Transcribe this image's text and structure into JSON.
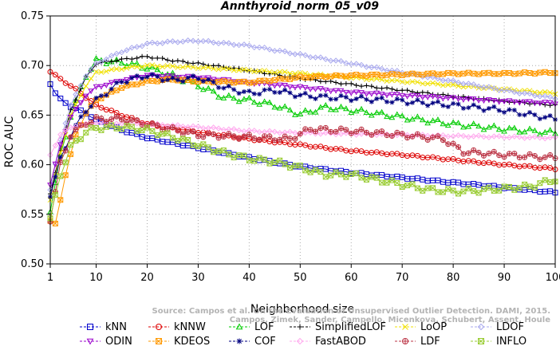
{
  "chart_data": {
    "type": "line",
    "title": "Annthyroid_norm_05_v09",
    "xlabel": "Neighborhood size",
    "ylabel": "ROC AUC",
    "xlim": [
      1,
      100
    ],
    "ylim": [
      0.5,
      0.75
    ],
    "xticks": [
      1,
      10,
      20,
      30,
      40,
      50,
      60,
      70,
      80,
      90,
      100
    ],
    "yticks": [
      "0.50",
      "0.55",
      "0.60",
      "0.65",
      "0.70",
      "0.75"
    ],
    "credit": [
      "Source: Campos et al. On the Evaluation of Unsupervised Outlier Detection. DAMI, 2015.",
      "Campos, Zimek, Sander, Campello, Micenkova, Schubert, Assent, Houle"
    ],
    "series": [
      {
        "name": "kNN",
        "color": "#0000cc",
        "marker": "square",
        "points": [
          [
            1,
            0.682
          ],
          [
            2,
            0.672
          ],
          [
            3,
            0.666
          ],
          [
            5,
            0.659
          ],
          [
            8,
            0.652
          ],
          [
            10,
            0.645
          ],
          [
            15,
            0.635
          ],
          [
            20,
            0.627
          ],
          [
            30,
            0.617
          ],
          [
            40,
            0.607
          ],
          [
            50,
            0.598
          ],
          [
            60,
            0.592
          ],
          [
            70,
            0.587
          ],
          [
            80,
            0.582
          ],
          [
            90,
            0.577
          ],
          [
            100,
            0.572
          ]
        ]
      },
      {
        "name": "kNNW",
        "color": "#dd0000",
        "marker": "circle",
        "points": [
          [
            1,
            0.694
          ],
          [
            2,
            0.69
          ],
          [
            4,
            0.683
          ],
          [
            6,
            0.676
          ],
          [
            8,
            0.668
          ],
          [
            10,
            0.66
          ],
          [
            15,
            0.65
          ],
          [
            20,
            0.641
          ],
          [
            30,
            0.633
          ],
          [
            40,
            0.626
          ],
          [
            50,
            0.62
          ],
          [
            60,
            0.614
          ],
          [
            70,
            0.61
          ],
          [
            80,
            0.605
          ],
          [
            90,
            0.6
          ],
          [
            100,
            0.596
          ]
        ]
      },
      {
        "name": "LOF",
        "color": "#00cc00",
        "marker": "triangle-up",
        "points": [
          [
            1,
            0.555
          ],
          [
            3,
            0.608
          ],
          [
            5,
            0.65
          ],
          [
            8,
            0.69
          ],
          [
            10,
            0.705
          ],
          [
            15,
            0.703
          ],
          [
            20,
            0.698
          ],
          [
            25,
            0.69
          ],
          [
            30,
            0.68
          ],
          [
            35,
            0.668
          ],
          [
            40,
            0.665
          ],
          [
            45,
            0.66
          ],
          [
            50,
            0.651
          ],
          [
            55,
            0.658
          ],
          [
            60,
            0.655
          ],
          [
            70,
            0.648
          ],
          [
            80,
            0.641
          ],
          [
            90,
            0.636
          ],
          [
            100,
            0.632
          ]
        ]
      },
      {
        "name": "SimplifiedLOF",
        "color": "#000000",
        "marker": "plus",
        "points": [
          [
            1,
            0.57
          ],
          [
            3,
            0.615
          ],
          [
            5,
            0.655
          ],
          [
            8,
            0.688
          ],
          [
            10,
            0.702
          ],
          [
            15,
            0.706
          ],
          [
            20,
            0.709
          ],
          [
            25,
            0.705
          ],
          [
            30,
            0.702
          ],
          [
            40,
            0.695
          ],
          [
            50,
            0.687
          ],
          [
            60,
            0.681
          ],
          [
            70,
            0.675
          ],
          [
            80,
            0.669
          ],
          [
            90,
            0.664
          ],
          [
            100,
            0.66
          ]
        ]
      },
      {
        "name": "LoOP",
        "color": "#f0e000",
        "marker": "x",
        "points": [
          [
            1,
            0.565
          ],
          [
            3,
            0.612
          ],
          [
            5,
            0.65
          ],
          [
            8,
            0.68
          ],
          [
            10,
            0.693
          ],
          [
            15,
            0.697
          ],
          [
            20,
            0.7
          ],
          [
            30,
            0.698
          ],
          [
            40,
            0.695
          ],
          [
            50,
            0.692
          ],
          [
            60,
            0.688
          ],
          [
            70,
            0.684
          ],
          [
            80,
            0.68
          ],
          [
            90,
            0.676
          ],
          [
            100,
            0.672
          ]
        ]
      },
      {
        "name": "LDOF",
        "color": "#aaaaee",
        "marker": "diamond",
        "points": [
          [
            1,
            0.575
          ],
          [
            3,
            0.625
          ],
          [
            5,
            0.66
          ],
          [
            8,
            0.69
          ],
          [
            10,
            0.702
          ],
          [
            15,
            0.714
          ],
          [
            20,
            0.722
          ],
          [
            25,
            0.724
          ],
          [
            30,
            0.725
          ],
          [
            40,
            0.72
          ],
          [
            50,
            0.711
          ],
          [
            60,
            0.702
          ],
          [
            70,
            0.693
          ],
          [
            80,
            0.684
          ],
          [
            90,
            0.675
          ],
          [
            100,
            0.667
          ]
        ]
      },
      {
        "name": "ODIN",
        "color": "#9900cc",
        "marker": "triangle-down",
        "points": [
          [
            1,
            0.58
          ],
          [
            3,
            0.62
          ],
          [
            5,
            0.648
          ],
          [
            8,
            0.67
          ],
          [
            10,
            0.678
          ],
          [
            15,
            0.685
          ],
          [
            20,
            0.69
          ],
          [
            30,
            0.688
          ],
          [
            40,
            0.683
          ],
          [
            50,
            0.678
          ],
          [
            60,
            0.673
          ],
          [
            70,
            0.67
          ],
          [
            80,
            0.667
          ],
          [
            90,
            0.664
          ],
          [
            100,
            0.662
          ]
        ]
      },
      {
        "name": "KDEOS",
        "color": "#ff9900",
        "marker": "square-x",
        "points": [
          [
            1,
            0.543
          ],
          [
            2,
            0.54
          ],
          [
            4,
            0.59
          ],
          [
            6,
            0.63
          ],
          [
            8,
            0.652
          ],
          [
            10,
            0.665
          ],
          [
            15,
            0.678
          ],
          [
            20,
            0.684
          ],
          [
            25,
            0.686
          ],
          [
            30,
            0.684
          ],
          [
            40,
            0.683
          ],
          [
            50,
            0.688
          ],
          [
            60,
            0.69
          ],
          [
            70,
            0.691
          ],
          [
            80,
            0.692
          ],
          [
            90,
            0.692
          ],
          [
            100,
            0.693
          ]
        ]
      },
      {
        "name": "COF",
        "color": "#000080",
        "marker": "star",
        "points": [
          [
            1,
            0.57
          ],
          [
            3,
            0.605
          ],
          [
            5,
            0.63
          ],
          [
            8,
            0.655
          ],
          [
            10,
            0.665
          ],
          [
            15,
            0.684
          ],
          [
            20,
            0.69
          ],
          [
            25,
            0.685
          ],
          [
            30,
            0.688
          ],
          [
            35,
            0.678
          ],
          [
            40,
            0.672
          ],
          [
            45,
            0.675
          ],
          [
            50,
            0.67
          ],
          [
            55,
            0.668
          ],
          [
            60,
            0.667
          ],
          [
            70,
            0.664
          ],
          [
            80,
            0.66
          ],
          [
            90,
            0.655
          ],
          [
            100,
            0.646
          ]
        ]
      },
      {
        "name": "FastABOD",
        "color": "#ffaaee",
        "marker": "diamond",
        "points": [
          [
            1,
            0.61
          ],
          [
            3,
            0.63
          ],
          [
            5,
            0.638
          ],
          [
            8,
            0.641
          ],
          [
            10,
            0.642
          ],
          [
            15,
            0.641
          ],
          [
            20,
            0.641
          ],
          [
            30,
            0.638
          ],
          [
            40,
            0.634
          ],
          [
            50,
            0.632
          ],
          [
            60,
            0.631
          ],
          [
            70,
            0.63
          ],
          [
            80,
            0.629
          ],
          [
            90,
            0.628
          ],
          [
            100,
            0.627
          ]
        ]
      },
      {
        "name": "LDF",
        "color": "#bb3344",
        "marker": "circle-plus",
        "points": [
          [
            1,
            0.545
          ],
          [
            3,
            0.6
          ],
          [
            5,
            0.63
          ],
          [
            8,
            0.642
          ],
          [
            10,
            0.646
          ],
          [
            15,
            0.646
          ],
          [
            20,
            0.641
          ],
          [
            30,
            0.63
          ],
          [
            40,
            0.628
          ],
          [
            48,
            0.626
          ],
          [
            52,
            0.636
          ],
          [
            60,
            0.634
          ],
          [
            70,
            0.63
          ],
          [
            78,
            0.626
          ],
          [
            82,
            0.613
          ],
          [
            90,
            0.61
          ],
          [
            100,
            0.607
          ]
        ]
      },
      {
        "name": "INFLO",
        "color": "#99cc33",
        "marker": "hourglass",
        "points": [
          [
            1,
            0.545
          ],
          [
            3,
            0.59
          ],
          [
            5,
            0.618
          ],
          [
            8,
            0.633
          ],
          [
            10,
            0.637
          ],
          [
            15,
            0.638
          ],
          [
            20,
            0.635
          ],
          [
            25,
            0.628
          ],
          [
            30,
            0.62
          ],
          [
            35,
            0.612
          ],
          [
            40,
            0.606
          ],
          [
            45,
            0.603
          ],
          [
            50,
            0.597
          ],
          [
            55,
            0.59
          ],
          [
            60,
            0.59
          ],
          [
            65,
            0.585
          ],
          [
            70,
            0.58
          ],
          [
            75,
            0.575
          ],
          [
            80,
            0.573
          ],
          [
            85,
            0.574
          ],
          [
            90,
            0.576
          ],
          [
            95,
            0.578
          ],
          [
            100,
            0.585
          ]
        ]
      }
    ]
  }
}
